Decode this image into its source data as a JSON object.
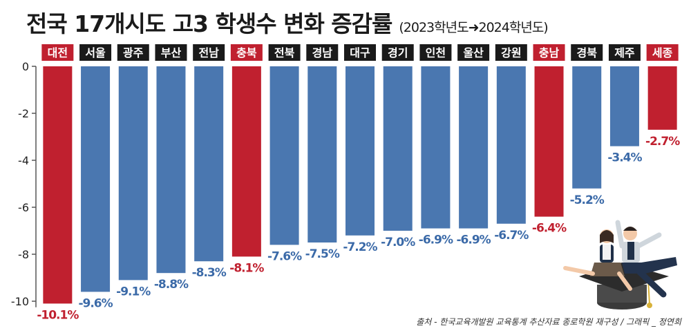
{
  "chart_data": {
    "type": "bar",
    "title": "전국 17개시도 고3 학생수 변화 증감률",
    "subtitle": "(2023학년도➜2024학년도)",
    "categories": [
      "대전",
      "서울",
      "광주",
      "부산",
      "전남",
      "충북",
      "전북",
      "경남",
      "대구",
      "경기",
      "인천",
      "울산",
      "강원",
      "충남",
      "경북",
      "제주",
      "세종"
    ],
    "values": [
      -10.1,
      -9.6,
      -9.1,
      -8.8,
      -8.3,
      -8.1,
      -7.6,
      -7.5,
      -7.2,
      -7.0,
      -6.9,
      -6.9,
      -6.7,
      -6.4,
      -5.2,
      -3.4,
      -2.7
    ],
    "value_labels": [
      "-10.1%",
      "-9.6%",
      "-9.1%",
      "-8.8%",
      "-8.3%",
      "-8.1%",
      "-7.6%",
      "-7.5%",
      "-7.2%",
      "-7.0%",
      "-6.9%",
      "-6.9%",
      "-6.7%",
      "-6.4%",
      "-5.2%",
      "-3.4%",
      "-2.7%"
    ],
    "highlight": [
      true,
      false,
      false,
      false,
      false,
      true,
      false,
      false,
      false,
      false,
      false,
      false,
      false,
      true,
      false,
      false,
      true
    ],
    "yticks": [
      0,
      -2,
      -4,
      -6,
      -8,
      -10
    ],
    "ylim": [
      -10.2,
      0
    ],
    "grid": false,
    "colors": {
      "highlight": "#c0202f",
      "normal": "#4a77b0",
      "normal_label": "#3b6aa8",
      "category_box": "#1a1a1a",
      "category_text": "#ffffff"
    }
  },
  "source": "출처 - 한국교육개발원 교육통계 추산자료 종로학원 재구성 / 그래픽 _ 정연희"
}
